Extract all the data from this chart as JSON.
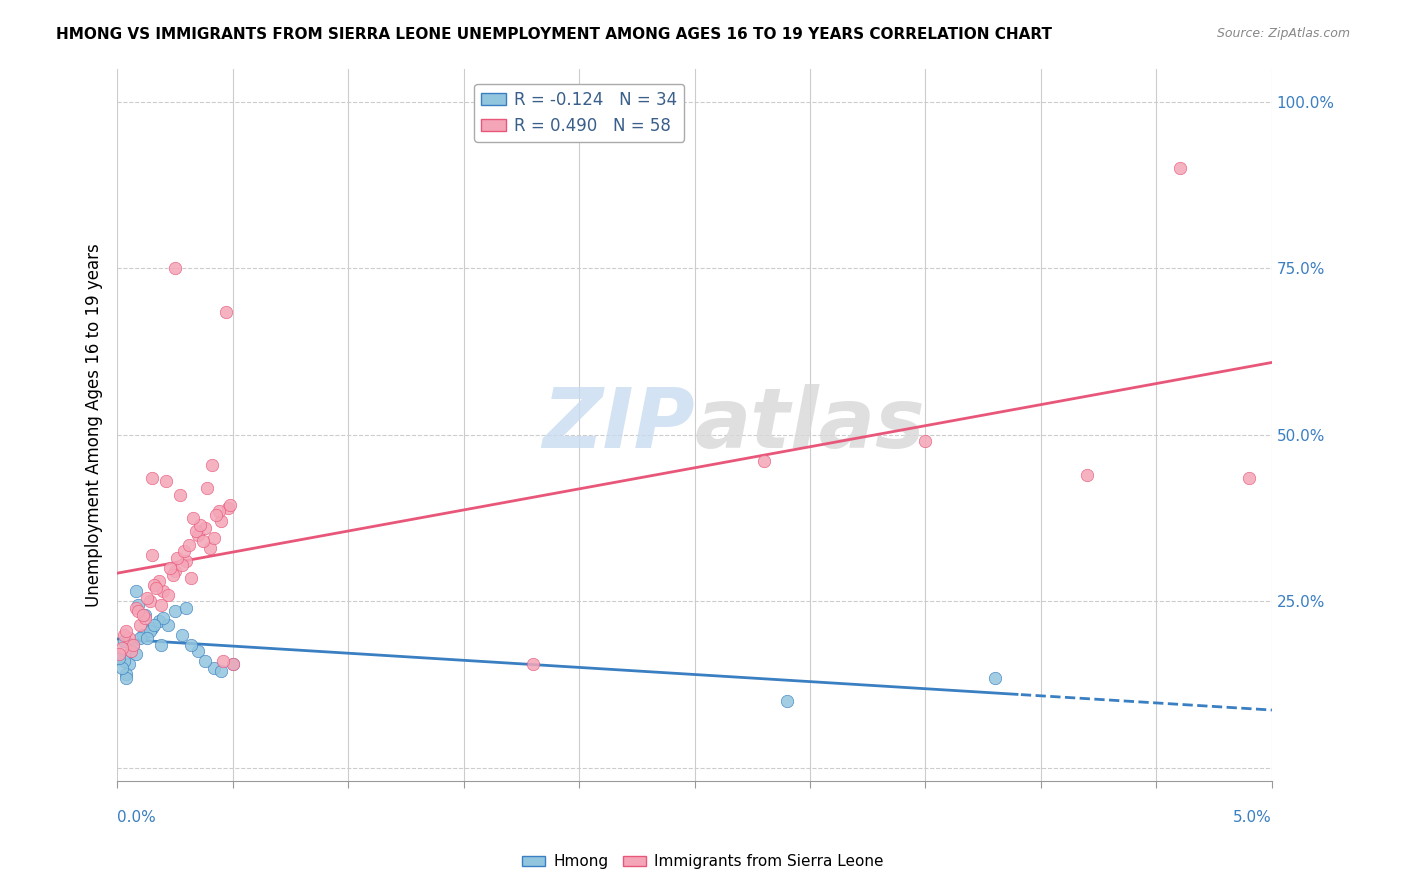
{
  "title": "HMONG VS IMMIGRANTS FROM SIERRA LEONE UNEMPLOYMENT AMONG AGES 16 TO 19 YEARS CORRELATION CHART",
  "source": "Source: ZipAtlas.com",
  "ylabel": "Unemployment Among Ages 16 to 19 years",
  "ylabel_right_ticks": [
    0.0,
    0.25,
    0.5,
    0.75,
    1.0
  ],
  "ylabel_right_labels": [
    "",
    "25.0%",
    "50.0%",
    "75.0%",
    "100.0%"
  ],
  "xmin": 0.0,
  "xmax": 0.05,
  "ymin": -0.02,
  "ymax": 1.05,
  "hmong_R": -0.124,
  "hmong_N": 34,
  "sierra_leone_R": 0.49,
  "sierra_leone_N": 58,
  "hmong_color": "#92C5DE",
  "sierra_leone_color": "#F4A6B8",
  "hmong_line_color": "#3A7FC1",
  "sierra_leone_line_color": "#E8577A",
  "legend_label1": "R = -0.124   N = 34",
  "legend_label2": "R = 0.490   N = 58",
  "watermark_zip": "ZIP",
  "watermark_atlas": "atlas",
  "hmong_x": [
    0.0008,
    0.0012,
    0.0005,
    0.0003,
    0.0015,
    0.0009,
    0.0006,
    0.0011,
    0.0004,
    0.0007,
    0.0018,
    0.0022,
    0.0014,
    0.001,
    0.0003,
    0.0025,
    0.003,
    0.002,
    0.0008,
    0.0016,
    0.0035,
    0.0028,
    0.0019,
    0.0013,
    0.0004,
    0.0002,
    0.0001,
    0.005,
    0.0042,
    0.0038,
    0.0045,
    0.0032,
    0.038,
    0.029
  ],
  "hmong_y": [
    0.265,
    0.23,
    0.155,
    0.19,
    0.21,
    0.245,
    0.175,
    0.2,
    0.14,
    0.185,
    0.22,
    0.215,
    0.205,
    0.195,
    0.16,
    0.235,
    0.24,
    0.225,
    0.17,
    0.215,
    0.175,
    0.2,
    0.185,
    0.195,
    0.135,
    0.15,
    0.165,
    0.155,
    0.15,
    0.16,
    0.145,
    0.185,
    0.135,
    0.1
  ],
  "sierra_leone_x": [
    0.0005,
    0.001,
    0.0015,
    0.002,
    0.0025,
    0.003,
    0.0035,
    0.004,
    0.0045,
    0.005,
    0.0008,
    0.0012,
    0.0018,
    0.0022,
    0.0028,
    0.0032,
    0.0038,
    0.0042,
    0.0048,
    0.0003,
    0.0006,
    0.0009,
    0.0014,
    0.0016,
    0.0024,
    0.0026,
    0.0034,
    0.0036,
    0.0044,
    0.0046,
    0.0007,
    0.0011,
    0.0017,
    0.0023,
    0.0029,
    0.0031,
    0.0037,
    0.0043,
    0.0049,
    0.0004,
    0.0013,
    0.0019,
    0.0027,
    0.0033,
    0.0039,
    0.0002,
    0.0021,
    0.0041,
    0.0001,
    0.0047,
    0.0015,
    0.0025,
    0.028,
    0.035,
    0.042,
    0.018,
    0.046,
    0.049
  ],
  "sierra_leone_y": [
    0.195,
    0.215,
    0.32,
    0.265,
    0.295,
    0.31,
    0.35,
    0.33,
    0.37,
    0.155,
    0.24,
    0.225,
    0.28,
    0.26,
    0.305,
    0.285,
    0.36,
    0.345,
    0.39,
    0.2,
    0.175,
    0.235,
    0.25,
    0.275,
    0.29,
    0.315,
    0.355,
    0.365,
    0.385,
    0.16,
    0.185,
    0.23,
    0.27,
    0.3,
    0.325,
    0.335,
    0.34,
    0.38,
    0.395,
    0.205,
    0.255,
    0.245,
    0.41,
    0.375,
    0.42,
    0.18,
    0.43,
    0.455,
    0.17,
    0.685,
    0.435,
    0.75,
    0.46,
    0.49,
    0.44,
    0.155,
    0.9,
    0.435
  ]
}
